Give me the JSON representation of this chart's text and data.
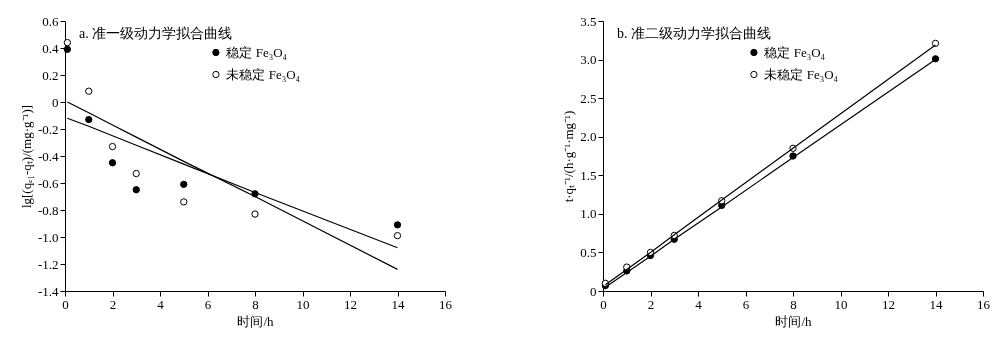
{
  "chart_data": [
    {
      "type": "scatter",
      "title": "a. 准一级动力学拟合曲线",
      "xlabel": "时间/h",
      "ylabel": "lg[(qₑ₁-qₜ)/(mg·g⁻¹)]",
      "xlim": [
        0,
        16
      ],
      "xticks": [
        0,
        2,
        4,
        6,
        8,
        10,
        12,
        14,
        16
      ],
      "ylim": [
        -1.4,
        0.6
      ],
      "yticks": [
        {
          "value": -1.4,
          "label": "-1.4"
        },
        {
          "value": -1.2,
          "label": "-1.2"
        },
        {
          "value": -1,
          "label": "-1.0"
        },
        {
          "value": -0.8,
          "label": "-0.8"
        },
        {
          "value": -0.6,
          "label": "-0.6"
        },
        {
          "value": -0.4,
          "label": "-0.4"
        },
        {
          "value": -0.2,
          "label": "-0.2"
        },
        0,
        0.2,
        0.4,
        0.6
      ],
      "grid": false,
      "legend": "top",
      "marker": "circle",
      "x": [
        0.1,
        1,
        2,
        3,
        5,
        8,
        14
      ],
      "series": [
        {
          "name": "稳定 Fe₃O₄",
          "color": "#000000",
          "values": [
            0.39,
            -0.13,
            -0.45,
            -0.65,
            -0.61,
            -0.68,
            -0.91
          ]
        },
        {
          "name": "未稳定 Fe₃O₄",
          "color": "#ffffff",
          "values": [
            0.44,
            0.08,
            -0.33,
            -0.53,
            -0.74,
            -0.83,
            -0.99
          ]
        },
        {
          "type": "line",
          "color": "#000000",
          "marker": "none",
          "line_style": "solid",
          "x": [
            0.1,
            1,
            2,
            3,
            5,
            8,
            14
          ],
          "values": [
            0.0,
            -0.08,
            -0.17,
            -0.26,
            -0.44,
            -0.7,
            -1.24
          ]
        },
        {
          "type": "line",
          "color": "#000000",
          "marker": "none",
          "line_style": "solid",
          "x": [
            0.1,
            1,
            2,
            3,
            5,
            8,
            14
          ],
          "values": [
            -0.12,
            -0.18,
            -0.25,
            -0.32,
            -0.46,
            -0.67,
            -1.08
          ]
        }
      ]
    },
    {
      "type": "scatter",
      "title": "b. 准二级动力学拟合曲线",
      "xlabel": "时间/h",
      "ylabel": "t·qₜ⁻¹/(h·g⁻¹·mg⁻¹)",
      "xlim": [
        0,
        16
      ],
      "xticks": [
        0,
        2,
        4,
        6,
        8,
        10,
        12,
        14,
        16
      ],
      "ylim": [
        0,
        3.5
      ],
      "yticks": [
        0,
        0.5,
        {
          "value": 1,
          "label": "1.0"
        },
        1.5,
        {
          "value": 2,
          "label": "2.0"
        },
        2.5,
        {
          "value": 3,
          "label": "3.0"
        },
        3.5
      ],
      "grid": false,
      "legend": "top",
      "marker": "circle",
      "x": [
        0.1,
        1,
        2,
        3,
        5,
        8,
        14
      ],
      "series": [
        {
          "name": "稳定 Fe₃O₄",
          "color": "#000000",
          "values": [
            0.07,
            0.26,
            0.46,
            0.67,
            1.11,
            1.75,
            3.01
          ]
        },
        {
          "name": "未稳定 Fe₃O₄",
          "color": "#ffffff",
          "values": [
            0.1,
            0.31,
            0.5,
            0.72,
            1.17,
            1.85,
            3.21
          ]
        },
        {
          "type": "line",
          "color": "#000000",
          "marker": "none",
          "line_style": "solid",
          "x": [
            0.1,
            1,
            2,
            3,
            5,
            8,
            14
          ],
          "values": [
            0.05,
            0.24,
            0.45,
            0.67,
            1.09,
            1.73,
            3.0
          ]
        },
        {
          "type": "line",
          "color": "#000000",
          "marker": "none",
          "line_style": "solid",
          "x": [
            0.1,
            1,
            2,
            3,
            5,
            8,
            14
          ],
          "values": [
            0.08,
            0.28,
            0.5,
            0.73,
            1.18,
            1.85,
            3.19
          ]
        }
      ]
    }
  ]
}
